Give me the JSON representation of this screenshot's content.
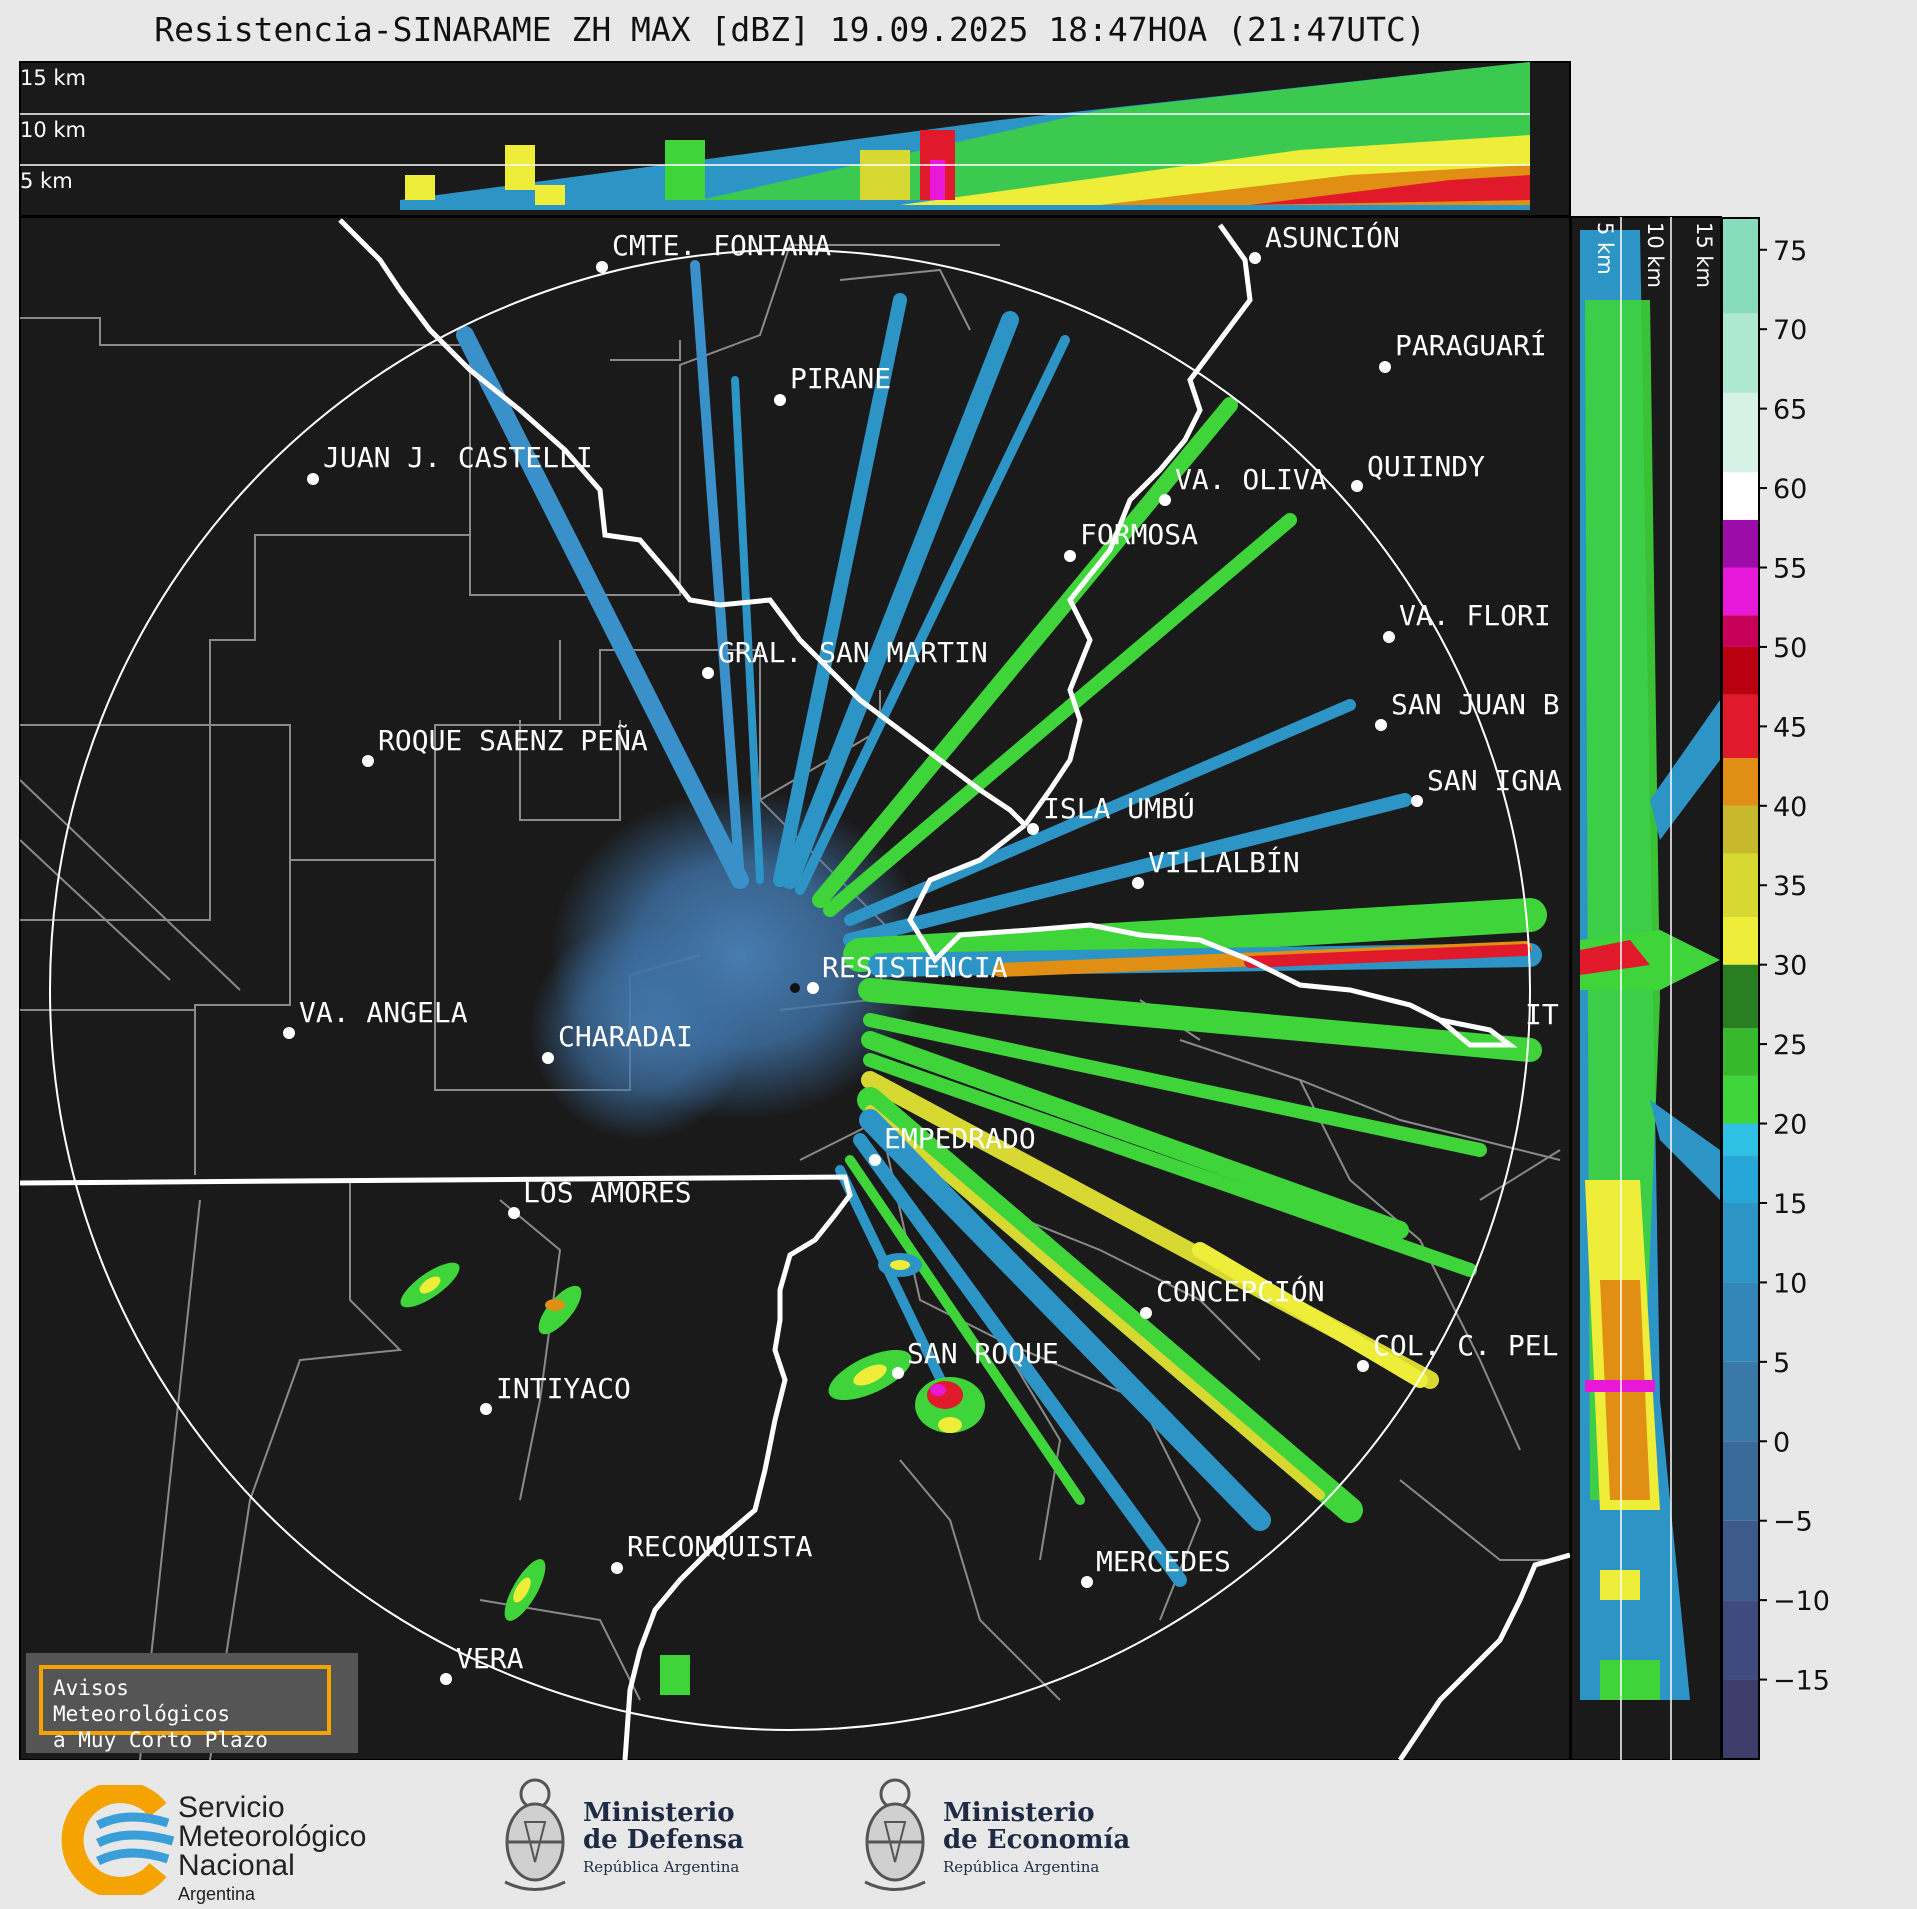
{
  "title": "Resistencia-SINARAME ZH MAX [dBZ] 19.09.2025 18:47HOA (21:47UTC)",
  "top_panel": {
    "height_labels": [
      "15 km",
      "10 km",
      "5 km"
    ]
  },
  "side_panel": {
    "height_labels": [
      "5 km",
      "10 km",
      "15 km"
    ]
  },
  "colorbar": {
    "ticks": [
      "75",
      "70",
      "65",
      "60",
      "55",
      "50",
      "45",
      "40",
      "35",
      "30",
      "25",
      "20",
      "15",
      "10",
      "5",
      "0",
      "−5",
      "−10",
      "−15"
    ],
    "bands": [
      {
        "from": -20,
        "to": -15,
        "color": "#3e3e6c"
      },
      {
        "from": -15,
        "to": -10,
        "color": "#414a7c"
      },
      {
        "from": -10,
        "to": -5,
        "color": "#3e5a8c"
      },
      {
        "from": -5,
        "to": 0,
        "color": "#3b6a9a"
      },
      {
        "from": 0,
        "to": 5,
        "color": "#3a78a8"
      },
      {
        "from": 5,
        "to": 10,
        "color": "#3586b8"
      },
      {
        "from": 10,
        "to": 15,
        "color": "#2d94c6"
      },
      {
        "from": 15,
        "to": 18,
        "color": "#27a6d8"
      },
      {
        "from": 18,
        "to": 20,
        "color": "#2fc0e6"
      },
      {
        "from": 20,
        "to": 23,
        "color": "#3ed43a"
      },
      {
        "from": 23,
        "to": 26,
        "color": "#38b82c"
      },
      {
        "from": 26,
        "to": 30,
        "color": "#2a7e22"
      },
      {
        "from": 30,
        "to": 33,
        "color": "#eeee3a"
      },
      {
        "from": 33,
        "to": 37,
        "color": "#d8d832"
      },
      {
        "from": 37,
        "to": 40,
        "color": "#c8b82c"
      },
      {
        "from": 40,
        "to": 43,
        "color": "#e08e14"
      },
      {
        "from": 43,
        "to": 47,
        "color": "#e01a2a"
      },
      {
        "from": 47,
        "to": 50,
        "color": "#b80010"
      },
      {
        "from": 50,
        "to": 52,
        "color": "#c8005a"
      },
      {
        "from": 52,
        "to": 55,
        "color": "#e818d8"
      },
      {
        "from": 55,
        "to": 58,
        "color": "#9c0ca8"
      },
      {
        "from": 58,
        "to": 61,
        "color": "#ffffff"
      },
      {
        "from": 61,
        "to": 66,
        "color": "#d6f2e6"
      },
      {
        "from": 66,
        "to": 71,
        "color": "#aee8d0"
      },
      {
        "from": 71,
        "to": 77,
        "color": "#86dcbc"
      }
    ]
  },
  "radar_site": "RESISTENCIA",
  "cities": [
    {
      "name": "CMTE. FONTANA"
    },
    {
      "name": "ASUNCIÓN"
    },
    {
      "name": "PIRANE"
    },
    {
      "name": "PARAGUARÍ"
    },
    {
      "name": "JUAN J. CASTELLI"
    },
    {
      "name": "VA. OLIVA"
    },
    {
      "name": "QUIINDY"
    },
    {
      "name": "FORMOSA"
    },
    {
      "name": "VA. FLORI"
    },
    {
      "name": "GRAL. SAN MARTIN"
    },
    {
      "name": "SAN JUAN B"
    },
    {
      "name": "ROQUE SAENZ PEÑA"
    },
    {
      "name": "SAN IGNA"
    },
    {
      "name": "ISLA UMBÚ"
    },
    {
      "name": "VILLALBÍN"
    },
    {
      "name": "RESISTENCIA"
    },
    {
      "name": "VA. ANGELA"
    },
    {
      "name": "CHARADAI"
    },
    {
      "name": "IT"
    },
    {
      "name": "EMPEDRADO"
    },
    {
      "name": "LOS AMORES"
    },
    {
      "name": "CONCEPCIÓN"
    },
    {
      "name": "SAN ROQUE"
    },
    {
      "name": "COL. C. PEL"
    },
    {
      "name": "INTIYACO"
    },
    {
      "name": "RECONQUISTA"
    },
    {
      "name": "MERCEDES"
    },
    {
      "name": "VERA"
    }
  ],
  "notice": {
    "line1": "Avisos Meteorológicos",
    "line2": "a Muy Corto Plazo"
  },
  "footer": {
    "smn": {
      "line1": "Servicio",
      "line2": "Meteorológico",
      "line3": "Nacional",
      "line4": "Argentina"
    },
    "defensa": {
      "line1": "Ministerio",
      "line2": "de Defensa",
      "line3": "República Argentina"
    },
    "economia": {
      "line1": "Ministerio",
      "line2": "de Economía",
      "line3": "República Argentina"
    }
  }
}
